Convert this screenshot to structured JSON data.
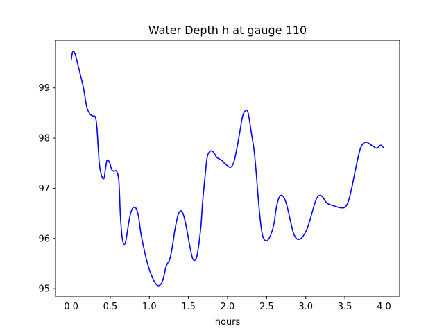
{
  "chart_data": {
    "type": "line",
    "title": "Water Depth h at gauge 110",
    "xlabel": "hours",
    "ylabel": "",
    "xlim": [
      -0.2,
      4.2
    ],
    "ylim": [
      94.85,
      99.95
    ],
    "xticks": [
      0.0,
      0.5,
      1.0,
      1.5,
      2.0,
      2.5,
      3.0,
      3.5,
      4.0
    ],
    "xtick_labels": [
      "0.0",
      "0.5",
      "1.0",
      "1.5",
      "2.0",
      "2.5",
      "3.0",
      "3.5",
      "4.0"
    ],
    "yticks": [
      95,
      96,
      97,
      98,
      99
    ],
    "ytick_labels": [
      "95",
      "96",
      "97",
      "98",
      "99"
    ],
    "grid": false,
    "series": [
      {
        "color": "#0000ff",
        "x": [
          0.0,
          0.02,
          0.05,
          0.08,
          0.12,
          0.16,
          0.2,
          0.24,
          0.28,
          0.31,
          0.33,
          0.36,
          0.39,
          0.42,
          0.44,
          0.46,
          0.49,
          0.52,
          0.55,
          0.58,
          0.61,
          0.63,
          0.65,
          0.67,
          0.69,
          0.71,
          0.74,
          0.77,
          0.8,
          0.83,
          0.86,
          0.89,
          0.92,
          0.96,
          1.0,
          1.04,
          1.08,
          1.12,
          1.16,
          1.19,
          1.21,
          1.23,
          1.26,
          1.29,
          1.33,
          1.37,
          1.41,
          1.44,
          1.47,
          1.5,
          1.53,
          1.56,
          1.6,
          1.63,
          1.66,
          1.68,
          1.71,
          1.74,
          1.78,
          1.82,
          1.86,
          1.9,
          1.93,
          1.96,
          2.0,
          2.04,
          2.08,
          2.12,
          2.16,
          2.19,
          2.22,
          2.26,
          2.3,
          2.34,
          2.37,
          2.39,
          2.42,
          2.45,
          2.49,
          2.53,
          2.57,
          2.6,
          2.62,
          2.65,
          2.68,
          2.72,
          2.76,
          2.8,
          2.84,
          2.87,
          2.9,
          2.94,
          2.98,
          3.02,
          3.06,
          3.1,
          3.14,
          3.18,
          3.22,
          3.26,
          3.3,
          3.34,
          3.38,
          3.42,
          3.46,
          3.5,
          3.54,
          3.58,
          3.62,
          3.66,
          3.7,
          3.74,
          3.78,
          3.82,
          3.86,
          3.9,
          3.93,
          3.96,
          4.0
        ],
        "y": [
          99.55,
          99.72,
          99.68,
          99.5,
          99.25,
          98.98,
          98.62,
          98.48,
          98.44,
          98.42,
          98.2,
          97.5,
          97.25,
          97.2,
          97.4,
          97.56,
          97.52,
          97.37,
          97.34,
          97.34,
          97.15,
          96.45,
          96.05,
          95.9,
          95.9,
          96.05,
          96.35,
          96.55,
          96.62,
          96.6,
          96.45,
          96.12,
          95.88,
          95.6,
          95.38,
          95.22,
          95.1,
          95.06,
          95.12,
          95.28,
          95.42,
          95.5,
          95.58,
          95.8,
          96.2,
          96.48,
          96.55,
          96.45,
          96.25,
          96.0,
          95.75,
          95.58,
          95.6,
          95.85,
          96.25,
          96.7,
          97.2,
          97.62,
          97.74,
          97.72,
          97.62,
          97.58,
          97.55,
          97.5,
          97.45,
          97.42,
          97.52,
          97.8,
          98.15,
          98.42,
          98.53,
          98.52,
          98.15,
          97.75,
          97.25,
          96.85,
          96.35,
          96.05,
          95.95,
          96.0,
          96.15,
          96.35,
          96.58,
          96.78,
          96.86,
          96.82,
          96.65,
          96.38,
          96.12,
          96.02,
          95.98,
          96.0,
          96.08,
          96.2,
          96.4,
          96.62,
          96.8,
          96.86,
          96.82,
          96.72,
          96.68,
          96.66,
          96.64,
          96.62,
          96.61,
          96.62,
          96.72,
          96.95,
          97.25,
          97.55,
          97.8,
          97.9,
          97.92,
          97.88,
          97.84,
          97.8,
          97.82,
          97.86,
          97.8
        ]
      }
    ]
  }
}
